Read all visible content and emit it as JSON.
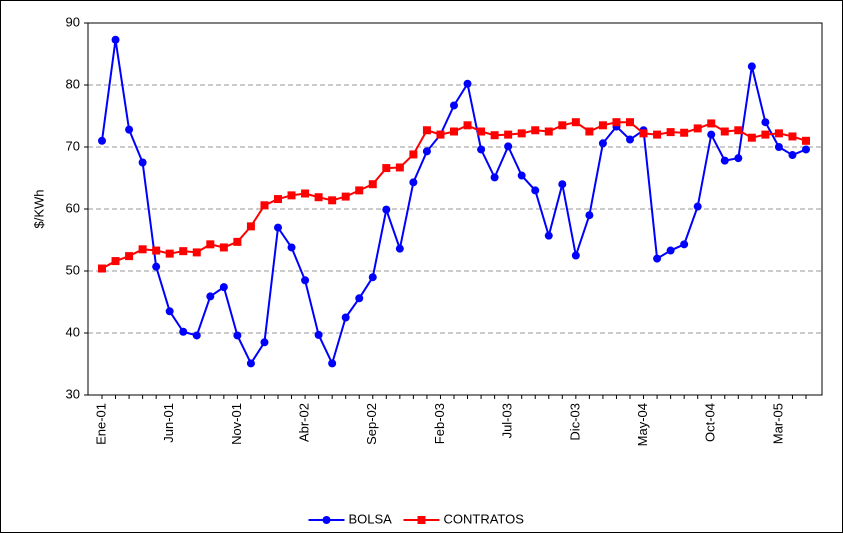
{
  "chart_data": {
    "type": "line",
    "y_label": "$/KWh",
    "categories": [
      "Ene-01",
      null,
      null,
      null,
      null,
      "Jun-01",
      null,
      null,
      null,
      null,
      "Nov-01",
      null,
      null,
      null,
      null,
      "Abr-02",
      null,
      null,
      null,
      null,
      "Sep-02",
      null,
      null,
      null,
      null,
      "Feb-03",
      null,
      null,
      null,
      null,
      "Jul-03",
      null,
      null,
      null,
      null,
      "Dic-03",
      null,
      null,
      null,
      null,
      "May-04",
      null,
      null,
      null,
      null,
      "Oct-04",
      null,
      null,
      null,
      null,
      "Mar-05",
      null,
      null
    ],
    "series": [
      {
        "name": "BOLSA",
        "color": "#0000ff",
        "marker": "circle",
        "values": [
          71,
          87.3,
          72.8,
          67.5,
          50.7,
          43.5,
          40.2,
          39.6,
          45.9,
          47.4,
          39.6,
          35.1,
          38.5,
          57,
          53.8,
          48.5,
          39.7,
          35.1,
          42.5,
          45.6,
          49,
          59.9,
          53.6,
          64.3,
          69.3,
          72,
          76.7,
          80.2,
          69.6,
          65.1,
          70.1,
          65.4,
          63,
          55.7,
          64,
          52.5,
          59,
          70.6,
          73.3,
          71.2,
          72.7,
          52,
          53.3,
          54.3,
          60.4,
          72,
          67.8,
          68.2,
          83,
          74,
          70,
          68.7,
          69.6
        ]
      },
      {
        "name": "CONTRATOS",
        "color": "#ff0000",
        "marker": "square",
        "values": [
          50.4,
          51.6,
          52.4,
          53.5,
          53.3,
          52.8,
          53.2,
          53,
          54.3,
          53.8,
          54.7,
          57.2,
          60.6,
          61.6,
          62.2,
          62.5,
          61.9,
          61.4,
          62,
          63,
          64,
          66.6,
          66.7,
          68.8,
          72.7,
          72,
          72.5,
          73.5,
          72.5,
          71.9,
          72,
          72.2,
          72.7,
          72.5,
          73.5,
          74,
          72.5,
          73.5,
          74,
          74,
          72.2,
          72,
          72.4,
          72.3,
          73,
          73.8,
          72.5,
          72.7,
          71.5,
          72,
          72.2,
          71.7,
          71
        ]
      }
    ],
    "ylim": [
      30,
      90
    ],
    "yticks": [
      30,
      40,
      50,
      60,
      70,
      80,
      90
    ],
    "grid": true,
    "legend": "bottom"
  }
}
